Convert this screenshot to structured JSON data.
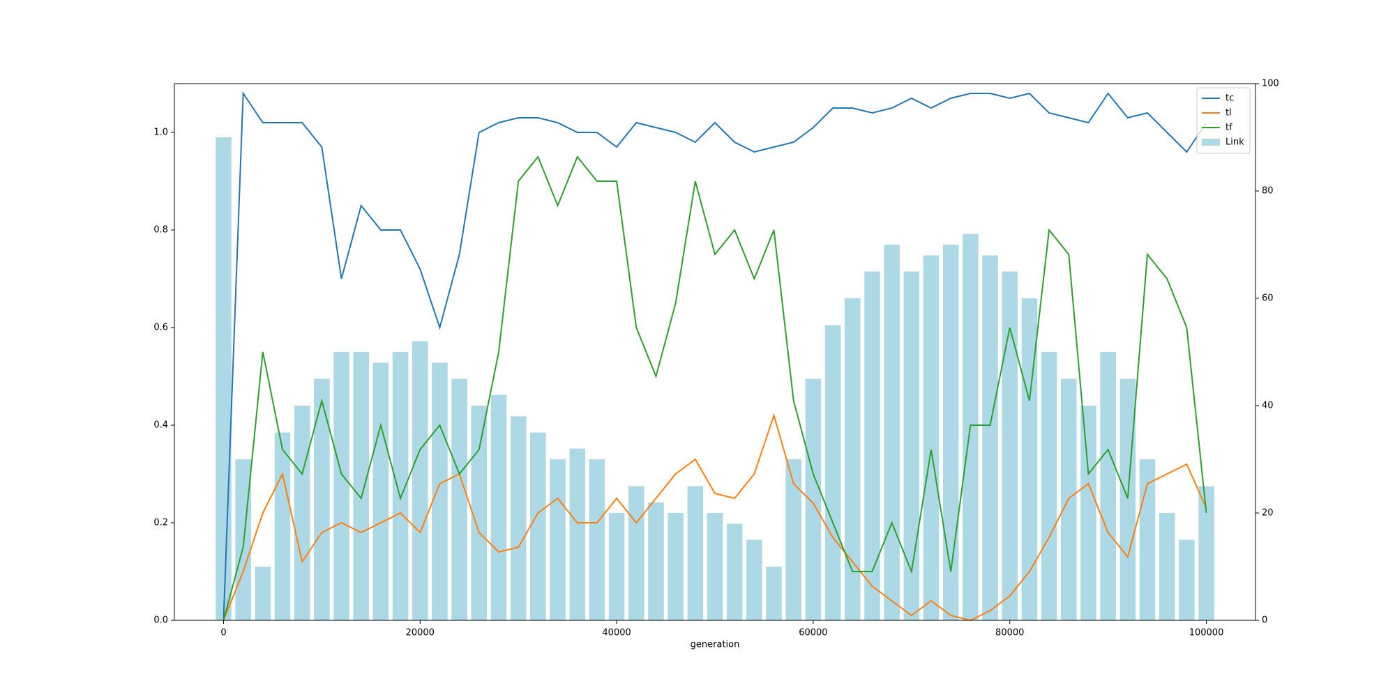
{
  "chart_data": {
    "type": "line",
    "xlabel": "generation",
    "x": [
      0,
      2000,
      4000,
      6000,
      8000,
      10000,
      12000,
      14000,
      16000,
      18000,
      20000,
      22000,
      24000,
      26000,
      28000,
      30000,
      32000,
      34000,
      36000,
      38000,
      40000,
      42000,
      44000,
      46000,
      48000,
      50000,
      52000,
      54000,
      56000,
      58000,
      60000,
      62000,
      64000,
      66000,
      68000,
      70000,
      72000,
      74000,
      76000,
      78000,
      80000,
      82000,
      84000,
      86000,
      88000,
      90000,
      92000,
      94000,
      96000,
      98000,
      100000
    ],
    "series": [
      {
        "name": "tc",
        "color": "#1f77b4",
        "type": "line",
        "values": [
          0,
          1.08,
          1.02,
          1.02,
          1.02,
          0.97,
          0.7,
          0.85,
          0.8,
          0.8,
          0.72,
          0.6,
          0.75,
          1.0,
          1.02,
          1.03,
          1.03,
          1.02,
          1.0,
          1.0,
          0.97,
          1.02,
          1.01,
          1.0,
          0.98,
          1.02,
          0.98,
          0.96,
          0.97,
          0.98,
          1.01,
          1.05,
          1.05,
          1.04,
          1.05,
          1.07,
          1.05,
          1.07,
          1.08,
          1.08,
          1.07,
          1.08,
          1.04,
          1.03,
          1.02,
          1.08,
          1.03,
          1.04,
          1.0,
          0.96,
          1.02
        ]
      },
      {
        "name": "tl",
        "color": "#ff7f0e",
        "type": "line",
        "values": [
          0,
          0.1,
          0.22,
          0.3,
          0.12,
          0.18,
          0.2,
          0.18,
          0.2,
          0.22,
          0.18,
          0.28,
          0.3,
          0.18,
          0.14,
          0.15,
          0.22,
          0.25,
          0.2,
          0.2,
          0.25,
          0.2,
          0.25,
          0.3,
          0.33,
          0.26,
          0.25,
          0.3,
          0.42,
          0.28,
          0.24,
          0.17,
          0.12,
          0.07,
          0.04,
          0.01,
          0.04,
          0.01,
          0.0,
          0.02,
          0.05,
          0.1,
          0.17,
          0.25,
          0.28,
          0.18,
          0.13,
          0.28,
          0.3,
          0.32,
          0.23
        ]
      },
      {
        "name": "tf",
        "color": "#2ca02c",
        "type": "line",
        "values": [
          0,
          0.15,
          0.55,
          0.35,
          0.3,
          0.45,
          0.3,
          0.25,
          0.4,
          0.25,
          0.35,
          0.4,
          0.3,
          0.35,
          0.55,
          0.9,
          0.95,
          0.85,
          0.95,
          0.9,
          0.9,
          0.6,
          0.5,
          0.65,
          0.9,
          0.75,
          0.8,
          0.7,
          0.8,
          0.45,
          0.3,
          0.2,
          0.1,
          0.1,
          0.2,
          0.1,
          0.35,
          0.1,
          0.4,
          0.4,
          0.6,
          0.45,
          0.8,
          0.75,
          0.3,
          0.35,
          0.25,
          0.75,
          0.7,
          0.6,
          0.22
        ]
      },
      {
        "name": "Link",
        "color": "#add8e6",
        "type": "bar",
        "axis": "y2",
        "values": [
          90,
          30,
          10,
          35,
          40,
          45,
          50,
          50,
          48,
          50,
          52,
          48,
          45,
          40,
          42,
          38,
          35,
          30,
          32,
          30,
          20,
          25,
          22,
          20,
          25,
          20,
          18,
          15,
          10,
          30,
          45,
          55,
          60,
          65,
          70,
          65,
          68,
          70,
          72,
          68,
          65,
          60,
          50,
          45,
          40,
          50,
          45,
          30,
          20,
          15,
          25
        ]
      }
    ],
    "xlim": [
      -5000,
      105000
    ],
    "xticks": [
      0,
      20000,
      40000,
      60000,
      80000,
      100000
    ],
    "ylim": [
      0,
      1.1
    ],
    "yticks": [
      {
        "value": 0,
        "label": "0.0"
      },
      {
        "value": 0.2,
        "label": "0.2"
      },
      {
        "value": 0.4,
        "label": "0.4"
      },
      {
        "value": 0.6,
        "label": "0.6"
      },
      {
        "value": 0.8,
        "label": "0.8"
      },
      {
        "value": 1.0,
        "label": "1.0"
      }
    ],
    "y2lim": [
      0,
      100
    ],
    "y2ticks": [
      0,
      20,
      40,
      60,
      80,
      100
    ],
    "legend": "upper right"
  }
}
